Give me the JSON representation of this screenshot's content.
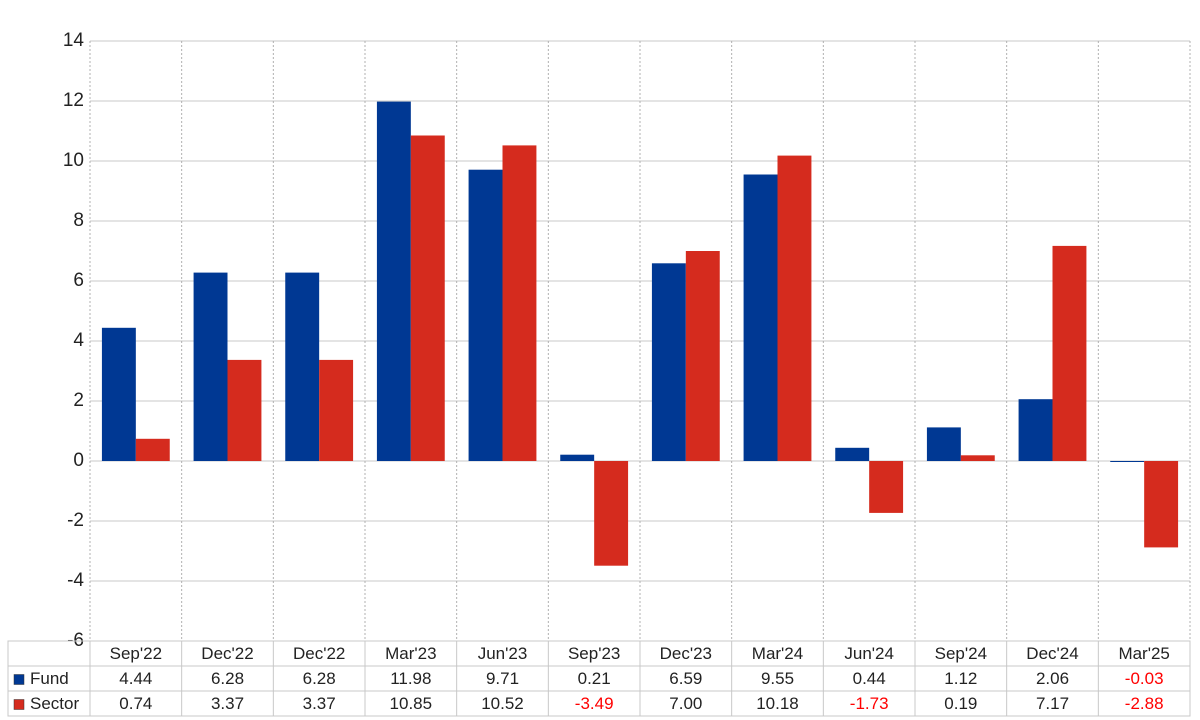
{
  "chart_data": {
    "type": "bar",
    "categories": [
      "Sep'22",
      "Dec'22",
      "Dec'22",
      "Mar'23",
      "Jun'23",
      "Sep'23",
      "Dec'23",
      "Mar'24",
      "Jun'24",
      "Sep'24",
      "Dec'24",
      "Mar'25"
    ],
    "series": [
      {
        "name": "Fund",
        "color": "#003893",
        "values": [
          4.44,
          6.28,
          6.28,
          11.98,
          9.71,
          0.21,
          6.59,
          9.55,
          0.44,
          1.12,
          2.06,
          -0.03
        ],
        "value_labels": [
          "4.44",
          "6.28",
          "6.28",
          "11.98",
          "9.71",
          "0.21",
          "6.59",
          "9.55",
          "0.44",
          "1.12",
          "2.06",
          "-0.03"
        ]
      },
      {
        "name": "Sector",
        "color": "#d52b1e",
        "values": [
          0.74,
          3.37,
          3.37,
          10.85,
          10.52,
          -3.49,
          7.0,
          10.18,
          -1.73,
          0.19,
          7.17,
          -2.88
        ],
        "value_labels": [
          "0.74",
          "3.37",
          "3.37",
          "10.85",
          "10.52",
          "-3.49",
          "7.00",
          "10.18",
          "-1.73",
          "0.19",
          "7.17",
          "-2.88"
        ]
      }
    ],
    "ylim": [
      -6,
      14
    ],
    "yticks": [
      -6,
      -4,
      -2,
      0,
      2,
      4,
      6,
      8,
      10,
      12,
      14
    ],
    "grid": true,
    "negative_label_color": "#ff0000"
  }
}
